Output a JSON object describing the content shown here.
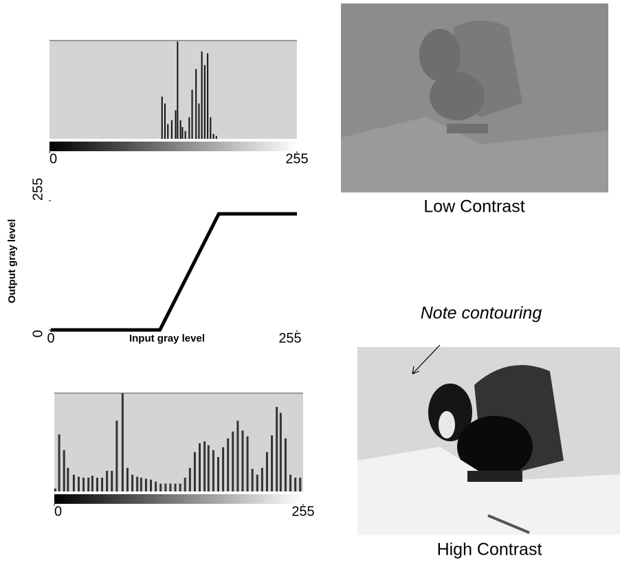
{
  "chart_data": [
    {
      "type": "bar",
      "color": "#111111",
      "xlim": [
        0,
        255
      ],
      "ylim": [
        0,
        100
      ],
      "xticks": [
        0,
        255
      ],
      "x": [
        116,
        119,
        122,
        126,
        130,
        132,
        135,
        137,
        140,
        144,
        147,
        151,
        154,
        157,
        160,
        163,
        166,
        169,
        172
      ],
      "values": [
        43,
        36,
        15,
        19,
        29,
        99,
        19,
        12,
        8,
        22,
        50,
        71,
        36,
        89,
        75,
        87,
        22,
        5,
        3
      ]
    },
    {
      "type": "line",
      "color": "#000000",
      "xlim": [
        0,
        255
      ],
      "ylim": [
        0,
        255
      ],
      "xticks": [
        0,
        255
      ],
      "yticks": [
        0,
        255
      ],
      "xlabel": "Input gray level",
      "ylabel": "Output gray level",
      "x": [
        0,
        113,
        174,
        255
      ],
      "values": [
        0,
        0,
        229,
        229
      ]
    },
    {
      "type": "bar",
      "color": "#333333",
      "xlim": [
        0,
        255
      ],
      "ylim": [
        0,
        100
      ],
      "xticks": [
        0,
        255
      ],
      "x": [
        1,
        5,
        10,
        14,
        20,
        25,
        30,
        35,
        39,
        44,
        49,
        54,
        59,
        64,
        70,
        75,
        80,
        85,
        89,
        94,
        99,
        104,
        109,
        114,
        119,
        124,
        129,
        134,
        139,
        144,
        149,
        154,
        158,
        163,
        168,
        173,
        178,
        183,
        188,
        193,
        198,
        203,
        208,
        213,
        218,
        223,
        228,
        232,
        237,
        242,
        247,
        252
      ],
      "values": [
        3,
        58,
        42,
        24,
        17,
        15,
        14,
        14,
        16,
        14,
        14,
        21,
        21,
        72,
        100,
        24,
        17,
        15,
        14,
        13,
        12,
        10,
        8,
        8,
        8,
        8,
        8,
        14,
        24,
        40,
        49,
        51,
        47,
        42,
        35,
        45,
        54,
        61,
        72,
        62,
        56,
        23,
        17,
        24,
        40,
        57,
        86,
        80,
        54,
        17,
        14,
        14
      ]
    }
  ],
  "images": [
    {
      "caption": "Low Contrast"
    },
    {
      "caption": "High Contrast",
      "annotation": "Note contouring"
    }
  ]
}
